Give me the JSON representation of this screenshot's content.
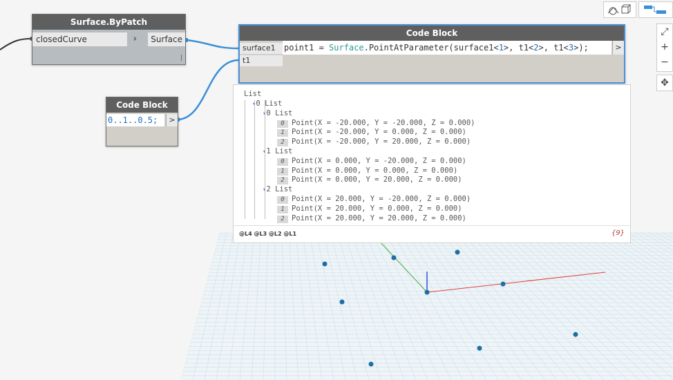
{
  "nodes": {
    "surface_by_patch": {
      "title": "Surface.ByPatch",
      "input": "closedCurve",
      "output": "Surface"
    },
    "code_block_main": {
      "title": "Code Block",
      "inputs": [
        "surface1",
        "t1"
      ],
      "code": {
        "p1": "point1 = ",
        "kw": "Surface",
        "p2": ".PointAtParameter(surface1<",
        "n1": "1",
        "p3": ">, t1<",
        "n2": "2",
        "p4": ">, t1<",
        "n3": "3",
        "p5": ">);"
      },
      "output_button": ">"
    },
    "code_block_small": {
      "title": "Code Block",
      "code": "0..1..0.5;",
      "output_button": ">"
    }
  },
  "preview": {
    "root": "List",
    "groups": [
      {
        "label": "0 List",
        "sublists": [
          {
            "label": "0 List",
            "items": [
              {
                "index": "0",
                "value": "Point(X = -20.000, Y = -20.000, Z = 0.000)"
              },
              {
                "index": "1",
                "value": "Point(X = -20.000, Y = 0.000, Z = 0.000)"
              },
              {
                "index": "2",
                "value": "Point(X = -20.000, Y = 20.000, Z = 0.000)"
              }
            ]
          },
          {
            "label": "1 List",
            "items": [
              {
                "index": "0",
                "value": "Point(X = 0.000, Y = -20.000, Z = 0.000)"
              },
              {
                "index": "1",
                "value": "Point(X = 0.000, Y = 0.000, Z = 0.000)"
              },
              {
                "index": "2",
                "value": "Point(X = 0.000, Y = 20.000, Z = 0.000)"
              }
            ]
          },
          {
            "label": "2 List",
            "items": [
              {
                "index": "0",
                "value": "Point(X = 20.000, Y = -20.000, Z = 0.000)"
              },
              {
                "index": "1",
                "value": "Point(X = 20.000, Y = 0.000, Z = 0.000)"
              },
              {
                "index": "2",
                "value": "Point(X = 20.000, Y = 20.000, Z = 0.000)"
              }
            ]
          }
        ]
      }
    ],
    "levels": "@L4 @L3 @L2 @L1",
    "count": "{9}"
  },
  "zoom_controls": {
    "fit": "⤢",
    "zoom_in": "+",
    "zoom_out": "−",
    "pan": "✥"
  },
  "colors": {
    "wire": "#3a8fd8",
    "node_title": "#5f5f5f",
    "point": "#1c6ea4",
    "x_axis": "#e04040",
    "y_axis": "#40b040",
    "z_axis": "#3050e0",
    "grid": "#cfe0ea"
  }
}
